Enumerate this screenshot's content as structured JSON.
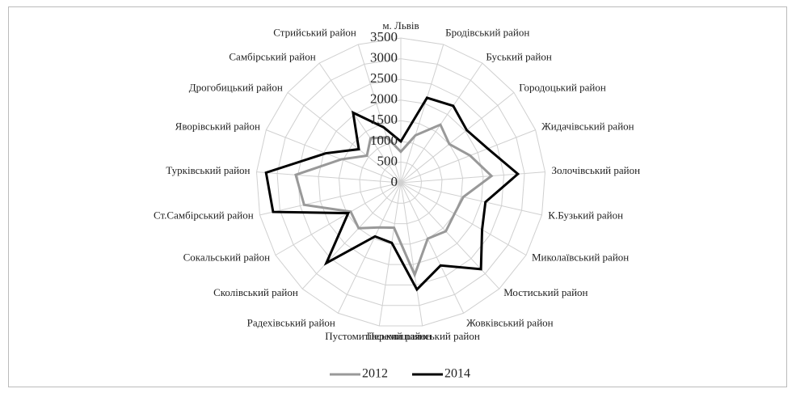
{
  "chart_data": {
    "type": "radar",
    "categories": [
      "м. Львів",
      "Бродівський район",
      "Буський район",
      "Городоцький район",
      "Жидачівський район",
      "Золочівський район",
      "К.Бузький район",
      "Миколаївський район",
      "Мостиський район",
      "Жовківський район",
      "Перемишлянський район",
      "Пустомитівський район",
      "Радехівський район",
      "Сколівський район",
      "Сокальський район",
      "Ст.Самбірський район",
      "Турківський район",
      "Яворівський район",
      "Дрогобицький район",
      "Самбірський район",
      "Стрийський район"
    ],
    "series": [
      {
        "name": "2012",
        "color": "#999999",
        "values": [
          750,
          1200,
          1700,
          1500,
          1800,
          2200,
          1550,
          1500,
          1600,
          1500,
          2250,
          1100,
          1200,
          1500,
          1400,
          2400,
          2550,
          1550,
          1050,
          1300,
          1150
        ]
      },
      {
        "name": "2014",
        "color": "#000000",
        "values": [
          1000,
          2150,
          2250,
          2040,
          2260,
          2840,
          2100,
          2270,
          2850,
          2220,
          2610,
          1470,
          1440,
          2650,
          1470,
          3170,
          3270,
          1950,
          1300,
          2050,
          1400
        ]
      }
    ],
    "rlim": [
      0,
      3500
    ],
    "rticks": [
      0,
      500,
      1000,
      1500,
      2000,
      2500,
      3000,
      3500
    ],
    "grid": true,
    "legend": "bottom"
  }
}
